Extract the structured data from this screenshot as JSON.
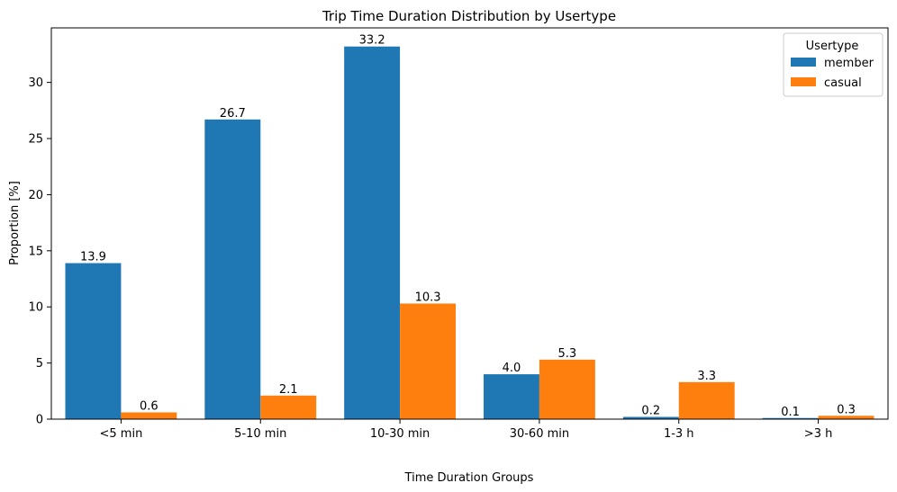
{
  "chart_data": {
    "type": "bar",
    "title": "Trip Time Duration Distribution by Usertype",
    "xlabel": "Time Duration Groups",
    "ylabel": "Proportion [%]",
    "categories": [
      "<5 min",
      "5-10 min",
      "10-30 min",
      "30-60 min",
      "1-3 h",
      ">3 h"
    ],
    "series": [
      {
        "name": "member",
        "values": [
          13.9,
          26.7,
          33.2,
          4.0,
          0.2,
          0.1
        ],
        "labels": [
          "13.9",
          "26.7",
          "33.2",
          "4.0",
          "0.2",
          "0.1"
        ],
        "color": "#1f77b4"
      },
      {
        "name": "casual",
        "values": [
          0.6,
          2.1,
          10.3,
          5.3,
          3.3,
          0.3
        ],
        "labels": [
          "0.6",
          "2.1",
          "10.3",
          "5.3",
          "3.3",
          "0.3"
        ],
        "color": "#ff7f0e"
      }
    ],
    "ylim": [
      0,
      34.86
    ],
    "yticks": [
      0,
      5,
      10,
      15,
      20,
      25,
      30
    ],
    "grid": false,
    "legend": {
      "title": "Usertype",
      "placement": "top-right"
    }
  }
}
